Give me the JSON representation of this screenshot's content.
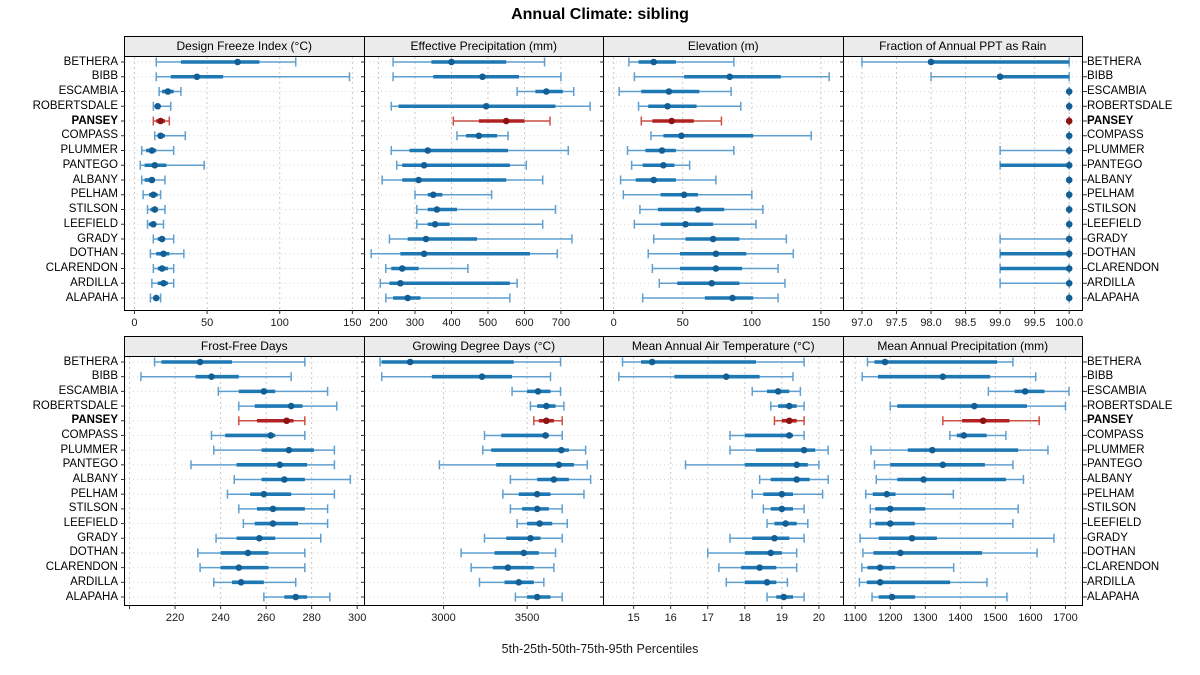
{
  "title": "Annual Climate: sibling",
  "caption": "5th-25th-50th-75th-95th Percentiles",
  "sites": [
    "BETHERA",
    "BIBB",
    "ESCAMBIA",
    "ROBERTSDALE",
    "PANSEY",
    "COMPASS",
    "PLUMMER",
    "PANTEGO",
    "ALBANY",
    "PELHAM",
    "STILSON",
    "LEEFIELD",
    "GRADY",
    "DOTHAN",
    "CLARENDON",
    "ARDILLA",
    "ALAPAHA"
  ],
  "highlight_site": "PANSEY",
  "colors": {
    "blue_range": "#5f9fd0",
    "blue_iqr": "#1d78b4",
    "blue_dot": "#135f94",
    "red_range": "#cc4f42",
    "red_iqr": "#b22222",
    "red_dot": "#8e1414",
    "gridline": "#c9c9c9",
    "row_guide": "#d6d6d6",
    "strip_bg": "#ebebeb",
    "axis_text": "#1a1a1a",
    "tick": "#333333",
    "border": "#000000"
  },
  "chart_data": {
    "type": "dotplot-percentiles",
    "title": "Annual Climate: sibling",
    "xlabel": "5th-25th-50th-75th-95th Percentiles",
    "percentiles": [
      5,
      25,
      50,
      75,
      95
    ],
    "legend_position": "none",
    "grid": "dashed-vertical-and-dotted-row-guides",
    "panels": [
      {
        "title": "Design Freeze Index (°C)",
        "row": 0,
        "col": 0,
        "xlim": [
          -6.5,
          158
        ],
        "ticks": [
          0,
          50,
          100,
          150
        ],
        "tick_labels": [
          "0",
          "50",
          "100",
          "150"
        ],
        "series": [
          [
            15,
            32,
            71,
            86,
            111
          ],
          [
            15,
            25,
            43,
            61,
            148
          ],
          [
            17,
            19,
            23,
            27,
            32
          ],
          [
            13,
            14,
            16,
            18,
            25
          ],
          [
            13,
            15,
            18,
            21,
            24
          ],
          [
            14,
            16,
            18,
            21,
            35
          ],
          [
            5,
            8,
            12,
            15,
            27
          ],
          [
            4,
            7,
            14,
            22,
            48
          ],
          [
            5,
            7,
            12,
            14,
            21
          ],
          [
            6,
            10,
            13,
            16,
            18
          ],
          [
            9,
            11,
            14,
            16,
            21
          ],
          [
            9,
            10,
            13,
            14,
            20
          ],
          [
            13,
            16,
            19,
            21,
            27
          ],
          [
            11,
            15,
            20,
            24,
            34
          ],
          [
            13,
            16,
            19,
            23,
            27
          ],
          [
            12,
            16,
            20,
            23,
            27
          ],
          [
            11,
            13,
            15,
            16,
            18
          ]
        ]
      },
      {
        "title": "Effective Precipitation (mm)",
        "row": 0,
        "col": 1,
        "xlim": [
          163,
          818
        ],
        "ticks": [
          200,
          300,
          400,
          500,
          600,
          700
        ],
        "tick_labels": [
          "200",
          "300",
          "400",
          "500",
          "600",
          "700"
        ],
        "series": [
          [
            240,
            345,
            400,
            550,
            655
          ],
          [
            240,
            350,
            485,
            585,
            700
          ],
          [
            580,
            630,
            660,
            705,
            735
          ],
          [
            235,
            255,
            495,
            685,
            780
          ],
          [
            405,
            475,
            550,
            600,
            670
          ],
          [
            415,
            440,
            475,
            525,
            555
          ],
          [
            235,
            285,
            335,
            555,
            720
          ],
          [
            250,
            265,
            325,
            560,
            605
          ],
          [
            210,
            265,
            310,
            550,
            650
          ],
          [
            300,
            335,
            350,
            375,
            510
          ],
          [
            305,
            335,
            360,
            415,
            685
          ],
          [
            305,
            335,
            355,
            395,
            650
          ],
          [
            230,
            280,
            330,
            470,
            730
          ],
          [
            180,
            260,
            325,
            615,
            690
          ],
          [
            220,
            235,
            265,
            310,
            445
          ],
          [
            205,
            230,
            260,
            560,
            580
          ],
          [
            220,
            240,
            280,
            315,
            560
          ]
        ]
      },
      {
        "title": "Elevation (m)",
        "row": 0,
        "col": 2,
        "xlim": [
          -7,
          166
        ],
        "ticks": [
          0,
          50,
          100,
          150
        ],
        "tick_labels": [
          "0",
          "50",
          "100",
          "150"
        ],
        "series": [
          [
            11,
            18,
            29,
            45,
            87
          ],
          [
            15,
            51,
            84,
            121,
            156
          ],
          [
            4,
            20,
            40,
            62,
            85
          ],
          [
            18,
            25,
            39,
            60,
            92
          ],
          [
            20,
            28,
            42,
            58,
            78
          ],
          [
            27,
            36,
            49,
            101,
            143
          ],
          [
            10,
            23,
            35,
            45,
            87
          ],
          [
            13,
            21,
            36,
            44,
            55
          ],
          [
            5,
            16,
            29,
            45,
            74
          ],
          [
            7,
            34,
            51,
            61,
            100
          ],
          [
            19,
            32,
            61,
            80,
            108
          ],
          [
            15,
            34,
            52,
            72,
            103
          ],
          [
            29,
            52,
            72,
            91,
            125
          ],
          [
            25,
            48,
            74,
            96,
            130
          ],
          [
            28,
            48,
            74,
            93,
            119
          ],
          [
            33,
            46,
            71,
            91,
            124
          ],
          [
            21,
            66,
            86,
            101,
            119
          ]
        ]
      },
      {
        "title": "Fraction of Annual PPT as Rain",
        "row": 0,
        "col": 3,
        "xlim": [
          96.74,
          100.2
        ],
        "ticks": [
          97,
          97.5,
          98,
          98.5,
          99,
          99.5,
          100
        ],
        "tick_labels": [
          "97.0",
          "97.5",
          "98.0",
          "98.5",
          "99.0",
          "99.5",
          "100.0"
        ],
        "series": [
          [
            97,
            98,
            98,
            100,
            100
          ],
          [
            98,
            99,
            99,
            100,
            100
          ],
          [
            100,
            100,
            100,
            100,
            100
          ],
          [
            100,
            100,
            100,
            100,
            100
          ],
          [
            100,
            100,
            100,
            100,
            100
          ],
          [
            100,
            100,
            100,
            100,
            100
          ],
          [
            99,
            100,
            100,
            100,
            100
          ],
          [
            99,
            99,
            100,
            100,
            100
          ],
          [
            100,
            100,
            100,
            100,
            100
          ],
          [
            100,
            100,
            100,
            100,
            100
          ],
          [
            100,
            100,
            100,
            100,
            100
          ],
          [
            100,
            100,
            100,
            100,
            100
          ],
          [
            99,
            100,
            100,
            100,
            100
          ],
          [
            99,
            99,
            100,
            100,
            100
          ],
          [
            99,
            99,
            100,
            100,
            100
          ],
          [
            99,
            100,
            100,
            100,
            100
          ],
          [
            100,
            100,
            100,
            100,
            100
          ]
        ]
      },
      {
        "title": "Frost-Free Days",
        "row": 1,
        "col": 0,
        "xlim": [
          198,
          303
        ],
        "ticks": [
          200,
          220,
          240,
          260,
          280,
          300
        ],
        "tick_labels": [
          "",
          "220",
          "240",
          "260",
          "280",
          "300"
        ],
        "series": [
          [
            211,
            214,
            231,
            245,
            277
          ],
          [
            205,
            229,
            236,
            248,
            271
          ],
          [
            239,
            248,
            259,
            264,
            287
          ],
          [
            248,
            255,
            271,
            276,
            291
          ],
          [
            248,
            256,
            269,
            272,
            277
          ],
          [
            236,
            242,
            262,
            264,
            277
          ],
          [
            237,
            258,
            270,
            281,
            290
          ],
          [
            227,
            247,
            266,
            278,
            290
          ],
          [
            246,
            258,
            268,
            277,
            297
          ],
          [
            243,
            253,
            259,
            271,
            290
          ],
          [
            248,
            256,
            263,
            277,
            287
          ],
          [
            250,
            255,
            263,
            274,
            287
          ],
          [
            238,
            247,
            257,
            264,
            284
          ],
          [
            230,
            240,
            252,
            261,
            277
          ],
          [
            231,
            240,
            248,
            261,
            277
          ],
          [
            237,
            245,
            249,
            259,
            273
          ],
          [
            259,
            268,
            273,
            278,
            288
          ]
        ]
      },
      {
        "title": "Growing Degree Days (°C)",
        "row": 1,
        "col": 1,
        "xlim": [
          2530,
          3960
        ],
        "ticks": [
          3000,
          3500
        ],
        "tick_labels": [
          "3000",
          "3500"
        ],
        "series": [
          [
            2620,
            2630,
            2800,
            3420,
            3700
          ],
          [
            2630,
            2930,
            3230,
            3410,
            3640
          ],
          [
            3410,
            3500,
            3565,
            3640,
            3700
          ],
          [
            3520,
            3560,
            3615,
            3670,
            3720
          ],
          [
            3540,
            3570,
            3615,
            3660,
            3710
          ],
          [
            3245,
            3345,
            3610,
            3630,
            3710
          ],
          [
            3235,
            3285,
            3705,
            3750,
            3850
          ],
          [
            2975,
            3315,
            3690,
            3780,
            3860
          ],
          [
            3400,
            3560,
            3660,
            3750,
            3880
          ],
          [
            3355,
            3450,
            3560,
            3640,
            3840
          ],
          [
            3400,
            3470,
            3560,
            3630,
            3710
          ],
          [
            3440,
            3500,
            3575,
            3650,
            3740
          ],
          [
            3245,
            3375,
            3520,
            3580,
            3710
          ],
          [
            3105,
            3305,
            3480,
            3570,
            3670
          ],
          [
            3165,
            3295,
            3385,
            3540,
            3660
          ],
          [
            3215,
            3365,
            3450,
            3540,
            3600
          ],
          [
            3430,
            3500,
            3560,
            3640,
            3710
          ]
        ]
      },
      {
        "title": "Mean Annual Air Temperature (°C)",
        "row": 1,
        "col": 2,
        "xlim": [
          14.2,
          20.65
        ],
        "ticks": [
          15,
          16,
          17,
          18,
          19,
          20
        ],
        "tick_labels": [
          "15",
          "16",
          "17",
          "18",
          "19",
          "20"
        ],
        "series": [
          [
            14.7,
            15.2,
            15.5,
            18.3,
            19.6
          ],
          [
            14.6,
            16.1,
            17.5,
            18.4,
            19.3
          ],
          [
            18.2,
            18.6,
            18.9,
            19.2,
            19.5
          ],
          [
            18.7,
            18.9,
            19.2,
            19.4,
            19.6
          ],
          [
            18.8,
            19.0,
            19.2,
            19.4,
            19.6
          ],
          [
            17.6,
            18.0,
            19.2,
            19.3,
            19.6
          ],
          [
            17.6,
            18.3,
            19.6,
            19.9,
            20.25
          ],
          [
            16.4,
            18.0,
            19.4,
            19.7,
            20.0
          ],
          [
            18.4,
            18.7,
            19.4,
            19.75,
            20.25
          ],
          [
            18.2,
            18.5,
            19.0,
            19.3,
            20.1
          ],
          [
            18.5,
            18.7,
            19.0,
            19.3,
            19.6
          ],
          [
            18.6,
            18.8,
            19.1,
            19.4,
            19.7
          ],
          [
            17.6,
            18.2,
            18.8,
            19.2,
            19.6
          ],
          [
            17.0,
            18.0,
            18.7,
            19.0,
            19.4
          ],
          [
            17.3,
            17.9,
            18.4,
            18.85,
            19.4
          ],
          [
            17.5,
            18.0,
            18.6,
            18.85,
            19.15
          ],
          [
            18.6,
            18.85,
            19.05,
            19.3,
            19.6
          ]
        ]
      },
      {
        "title": "Mean Annual Precipitation (mm)",
        "row": 1,
        "col": 3,
        "xlim": [
          1068,
          1750
        ],
        "ticks": [
          1100,
          1200,
          1300,
          1400,
          1500,
          1600,
          1700
        ],
        "tick_labels": [
          "1100",
          "1200",
          "1300",
          "1400",
          "1500",
          "1600",
          "1700"
        ],
        "series": [
          [
            1135,
            1155,
            1185,
            1505,
            1550
          ],
          [
            1120,
            1165,
            1350,
            1485,
            1615
          ],
          [
            1480,
            1555,
            1585,
            1640,
            1710
          ],
          [
            1200,
            1220,
            1440,
            1590,
            1700
          ],
          [
            1350,
            1405,
            1465,
            1540,
            1625
          ],
          [
            1370,
            1390,
            1410,
            1475,
            1530
          ],
          [
            1145,
            1250,
            1320,
            1565,
            1650
          ],
          [
            1155,
            1200,
            1350,
            1470,
            1550
          ],
          [
            1160,
            1220,
            1295,
            1530,
            1580
          ],
          [
            1130,
            1150,
            1190,
            1215,
            1380
          ],
          [
            1143,
            1157,
            1200,
            1300,
            1565
          ],
          [
            1143,
            1157,
            1200,
            1270,
            1550
          ],
          [
            1114,
            1167,
            1262,
            1333,
            1667
          ],
          [
            1122,
            1152,
            1229,
            1462,
            1619
          ],
          [
            1119,
            1135,
            1171,
            1214,
            1381
          ],
          [
            1112,
            1133,
            1171,
            1371,
            1476
          ],
          [
            1148,
            1167,
            1205,
            1271,
            1533
          ]
        ]
      }
    ]
  }
}
